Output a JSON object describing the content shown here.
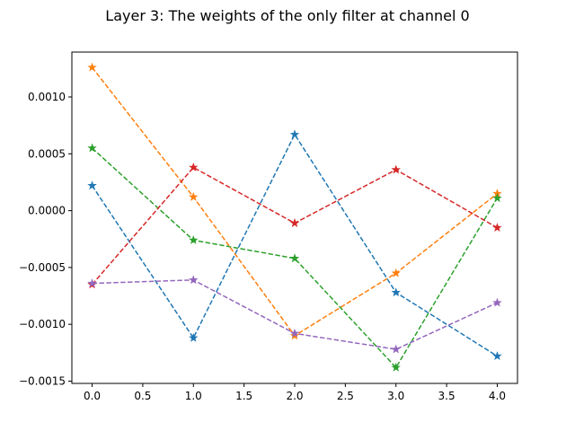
{
  "chart_data": {
    "type": "line",
    "title": "Layer 3: The weights of the only filter at channel 0",
    "xlabel": "",
    "ylabel": "",
    "x": [
      0,
      1,
      2,
      3,
      4
    ],
    "xlim": [
      -0.2,
      4.2
    ],
    "ylim": [
      -0.00152,
      0.001395
    ],
    "xticks": [
      0.0,
      0.5,
      1.0,
      1.5,
      2.0,
      2.5,
      3.0,
      3.5,
      4.0
    ],
    "xtick_labels": [
      "0.0",
      "0.5",
      "1.0",
      "1.5",
      "2.0",
      "2.5",
      "3.0",
      "3.5",
      "4.0"
    ],
    "yticks": [
      -0.0015,
      -0.001,
      -0.0005,
      0.0,
      0.0005,
      0.001
    ],
    "ytick_labels": [
      "−0.0015",
      "−0.0010",
      "−0.0005",
      "0.0000",
      "0.0005",
      "0.0010"
    ],
    "grid": false,
    "marker": "star",
    "line_style": "dashed",
    "series": [
      {
        "color": "#1f77b4",
        "values": [
          0.00022,
          -0.00112,
          0.00067,
          -0.00072,
          -0.00128
        ]
      },
      {
        "color": "#ff7f0e",
        "values": [
          0.00126,
          0.00012,
          -0.0011,
          -0.00055,
          0.00015
        ]
      },
      {
        "color": "#2ca02c",
        "values": [
          0.00055,
          -0.00026,
          -0.00042,
          -0.00138,
          0.00011
        ]
      },
      {
        "color": "#d62728",
        "values": [
          -0.00065,
          0.00038,
          -0.00011,
          0.00036,
          -0.00015
        ]
      },
      {
        "color": "#9467bd",
        "values": [
          -0.00064,
          -0.00061,
          -0.00108,
          -0.00122,
          -0.00081
        ]
      }
    ]
  }
}
